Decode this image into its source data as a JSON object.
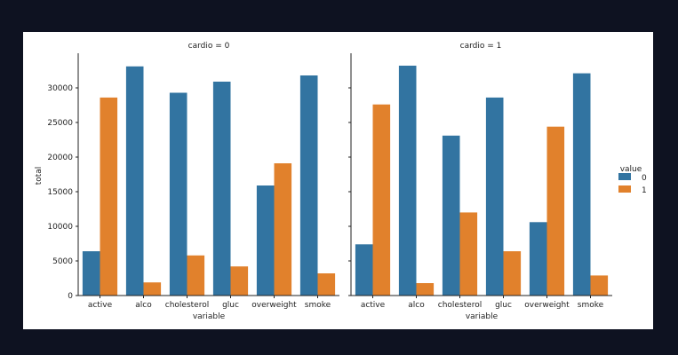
{
  "chart_data": {
    "type": "bar",
    "ylabel": "total",
    "xlabel": "variable",
    "ylim": [
      0,
      35000
    ],
    "yticks": [
      0,
      5000,
      10000,
      15000,
      20000,
      25000,
      30000
    ],
    "categories": [
      "active",
      "alco",
      "cholesterol",
      "gluc",
      "overweight",
      "smoke"
    ],
    "legend": {
      "title": "value",
      "position": "right",
      "entries": [
        {
          "name": "0",
          "color": "#3274a1"
        },
        {
          "name": "1",
          "color": "#e1812c"
        }
      ]
    },
    "panels": [
      {
        "title": "cardio = 0",
        "series": [
          {
            "name": "0",
            "values": [
              6400,
              33100,
              29300,
              30900,
              15900,
              31800
            ]
          },
          {
            "name": "1",
            "values": [
              28600,
              1900,
              5800,
              4200,
              19100,
              3200
            ]
          }
        ]
      },
      {
        "title": "cardio = 1",
        "series": [
          {
            "name": "0",
            "values": [
              7400,
              33200,
              23100,
              28600,
              10600,
              32100
            ]
          },
          {
            "name": "1",
            "values": [
              27600,
              1800,
              12000,
              6400,
              24400,
              2900
            ]
          }
        ]
      }
    ]
  }
}
